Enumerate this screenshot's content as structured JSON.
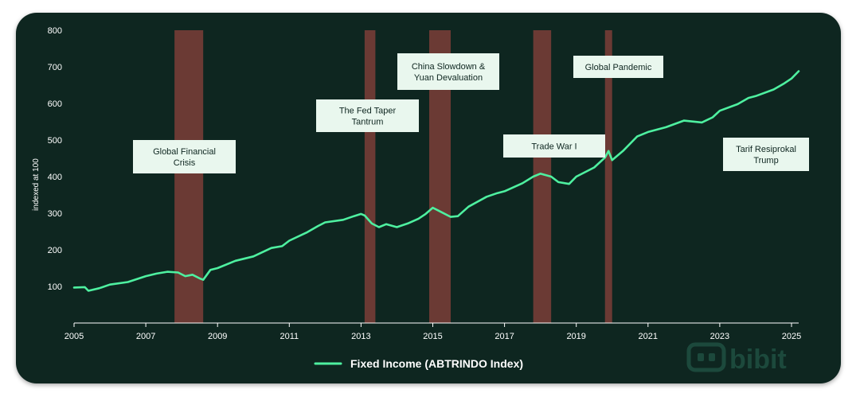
{
  "chart_data": {
    "type": "line",
    "ylabel": "indexed at 100",
    "xlabel": "",
    "title": "",
    "ylim": [
      0,
      800
    ],
    "xlim": [
      2005,
      2025.2
    ],
    "y_ticks": [
      100,
      200,
      300,
      400,
      500,
      600,
      700,
      800
    ],
    "x_ticks": [
      2005,
      2007,
      2009,
      2011,
      2013,
      2015,
      2017,
      2019,
      2021,
      2023,
      2025
    ],
    "legend_position": "bottom-center",
    "series": [
      {
        "name": "Fixed Income (ABTRINDO Index)",
        "color": "#4ef0a0",
        "points": [
          [
            2005.0,
            97
          ],
          [
            2005.3,
            98
          ],
          [
            2005.4,
            88
          ],
          [
            2005.7,
            95
          ],
          [
            2006.0,
            105
          ],
          [
            2006.5,
            112
          ],
          [
            2007.0,
            128
          ],
          [
            2007.3,
            135
          ],
          [
            2007.6,
            140
          ],
          [
            2007.9,
            138
          ],
          [
            2008.1,
            128
          ],
          [
            2008.3,
            132
          ],
          [
            2008.5,
            122
          ],
          [
            2008.6,
            118
          ],
          [
            2008.8,
            145
          ],
          [
            2009.0,
            150
          ],
          [
            2009.5,
            170
          ],
          [
            2010.0,
            182
          ],
          [
            2010.5,
            205
          ],
          [
            2010.8,
            210
          ],
          [
            2011.0,
            225
          ],
          [
            2011.5,
            248
          ],
          [
            2011.8,
            265
          ],
          [
            2012.0,
            275
          ],
          [
            2012.5,
            282
          ],
          [
            2012.8,
            292
          ],
          [
            2013.0,
            298
          ],
          [
            2013.1,
            294
          ],
          [
            2013.3,
            272
          ],
          [
            2013.5,
            262
          ],
          [
            2013.7,
            270
          ],
          [
            2014.0,
            262
          ],
          [
            2014.3,
            272
          ],
          [
            2014.6,
            285
          ],
          [
            2014.8,
            298
          ],
          [
            2015.0,
            315
          ],
          [
            2015.2,
            305
          ],
          [
            2015.5,
            290
          ],
          [
            2015.7,
            292
          ],
          [
            2016.0,
            318
          ],
          [
            2016.5,
            345
          ],
          [
            2016.8,
            355
          ],
          [
            2017.0,
            360
          ],
          [
            2017.5,
            382
          ],
          [
            2017.8,
            400
          ],
          [
            2018.0,
            408
          ],
          [
            2018.3,
            400
          ],
          [
            2018.5,
            385
          ],
          [
            2018.8,
            380
          ],
          [
            2019.0,
            400
          ],
          [
            2019.5,
            425
          ],
          [
            2019.8,
            452
          ],
          [
            2019.9,
            470
          ],
          [
            2020.0,
            445
          ],
          [
            2020.3,
            470
          ],
          [
            2020.7,
            510
          ],
          [
            2021.0,
            522
          ],
          [
            2021.5,
            535
          ],
          [
            2022.0,
            553
          ],
          [
            2022.5,
            548
          ],
          [
            2022.8,
            562
          ],
          [
            2023.0,
            580
          ],
          [
            2023.5,
            598
          ],
          [
            2023.8,
            615
          ],
          [
            2024.0,
            620
          ],
          [
            2024.5,
            638
          ],
          [
            2024.8,
            655
          ],
          [
            2025.0,
            668
          ],
          [
            2025.2,
            688
          ]
        ]
      }
    ],
    "events": [
      {
        "label": "Global Financial Crisis",
        "lines": [
          "Global Financial",
          "Crisis"
        ],
        "start": 2007.8,
        "end": 2008.6
      },
      {
        "label": "The Fed Taper Tantrum",
        "lines": [
          "The Fed Taper",
          "Tantrum"
        ],
        "start": 2013.1,
        "end": 2013.4
      },
      {
        "label": "China Slowdown & Yuan Devaluation",
        "lines": [
          "China Slowdown &",
          "Yuan Devaluation"
        ],
        "start": 2014.9,
        "end": 2015.5
      },
      {
        "label": "Trade War I",
        "lines": [
          "Trade  War I"
        ],
        "start": 2017.8,
        "end": 2018.3
      },
      {
        "label": "Global Pandemic",
        "lines": [
          "Global Pandemic"
        ],
        "start": 2019.8,
        "end": 2020.0
      },
      {
        "label": "Tarif Resiprokal Trump",
        "lines": [
          "Tarif Resiprokal",
          "Trump"
        ],
        "start": null,
        "end": null
      }
    ]
  },
  "colors": {
    "background": "#0e2620",
    "line": "#4ef0a0",
    "event_band": "#6b3a34",
    "event_box": "#e9f7ee"
  },
  "brand": {
    "name": "bibit",
    "icon": "bibit-logo-icon"
  }
}
